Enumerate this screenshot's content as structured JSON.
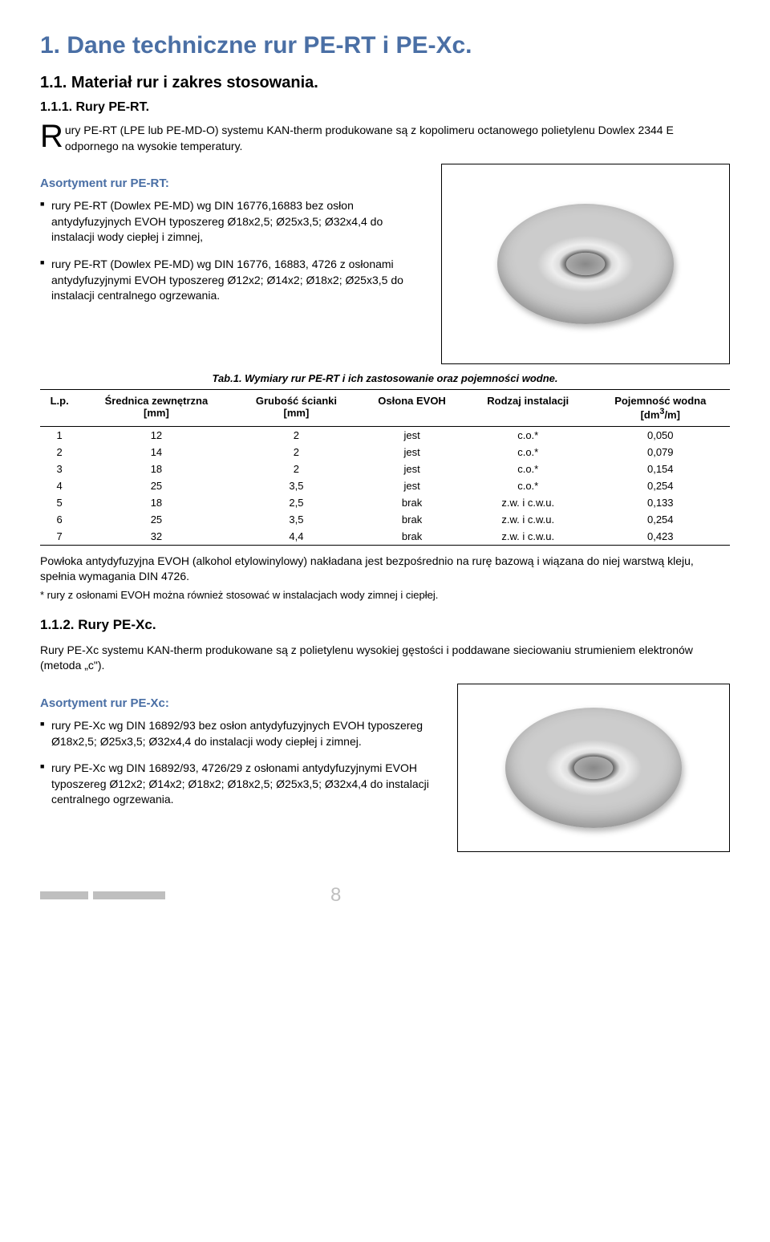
{
  "title": "1. Dane techniczne rur PE-RT i PE-Xc.",
  "sec11": "1.1. Materiał rur i zakres stosowania.",
  "sec111": "1.1.1. Rury PE-RT.",
  "intro_pre": "R",
  "intro": "ury PE-RT (LPE lub PE-MD-O) systemu KAN-therm produkowane są z kopolimeru octanowego polietylenu Dowlex 2344 E odpornego na wysokie temperatury.",
  "asort1_title": "Asortyment rur PE-RT:",
  "asort1_items": [
    "rury PE-RT (Dowlex PE-MD) wg DIN 16776,16883 bez osłon antydyfuzyjnych EVOH typoszereg Ø18x2,5; Ø25x3,5; Ø32x4,4 do instalacji wody ciepłej i zimnej,",
    "rury PE-RT (Dowlex PE-MD) wg DIN 16776, 16883, 4726 z osłonami antydyfuzyjnymi EVOH typoszereg Ø12x2; Ø14x2; Ø18x2; Ø25x3,5 do instalacji centralnego ogrzewania."
  ],
  "table_caption": "Tab.1. Wymiary rur PE-RT i ich zastosowanie oraz pojemności wodne.",
  "table": {
    "headers": [
      "L.p.",
      "Średnica zewnętrzna [mm]",
      "Grubość ścianki [mm]",
      "Osłona EVOH",
      "Rodzaj instalacji",
      "Pojemność wodna [dm³/m]"
    ],
    "rows": [
      [
        "1",
        "12",
        "2",
        "jest",
        "c.o.*",
        "0,050"
      ],
      [
        "2",
        "14",
        "2",
        "jest",
        "c.o.*",
        "0,079"
      ],
      [
        "3",
        "18",
        "2",
        "jest",
        "c.o.*",
        "0,154"
      ],
      [
        "4",
        "25",
        "3,5",
        "jest",
        "c.o.*",
        "0,254"
      ],
      [
        "5",
        "18",
        "2,5",
        "brak",
        "z.w. i c.w.u.",
        "0,133"
      ],
      [
        "6",
        "25",
        "3,5",
        "brak",
        "z.w. i c.w.u.",
        "0,254"
      ],
      [
        "7",
        "32",
        "4,4",
        "brak",
        "z.w. i c.w.u.",
        "0,423"
      ]
    ]
  },
  "after_table": "Powłoka antydyfuzyjna EVOH (alkohol etylowinylowy) nakładana jest bezpośrednio na rurę bazową i wiązana do niej warstwą kleju, spełnia wymagania DIN 4726.",
  "footnote": "* rury z osłonami EVOH można również stosować w instalacjach wody zimnej i ciepłej.",
  "sec112": "1.1.2. Rury PE-Xc.",
  "pexc_intro": "Rury PE-Xc systemu KAN-therm produkowane są z polietylenu wysokiej gęstości i poddawane sieciowaniu strumieniem elektronów (metoda „c\").",
  "asort2_title": "Asortyment rur PE-Xc:",
  "asort2_items": [
    "rury PE-Xc wg DIN 16892/93 bez osłon antydyfuzyjnych EVOH typoszereg Ø18x2,5; Ø25x3,5; Ø32x4,4 do instalacji wody ciepłej i zimnej.",
    "rury PE-Xc wg DIN 16892/93, 4726/29 z osłonami antydyfuzyjnymi EVOH typoszereg  Ø12x2; Ø14x2; Ø18x2; Ø18x2,5; Ø25x3,5; Ø32x4,4 do instalacji centralnego ogrzewania."
  ],
  "page_number": "8"
}
